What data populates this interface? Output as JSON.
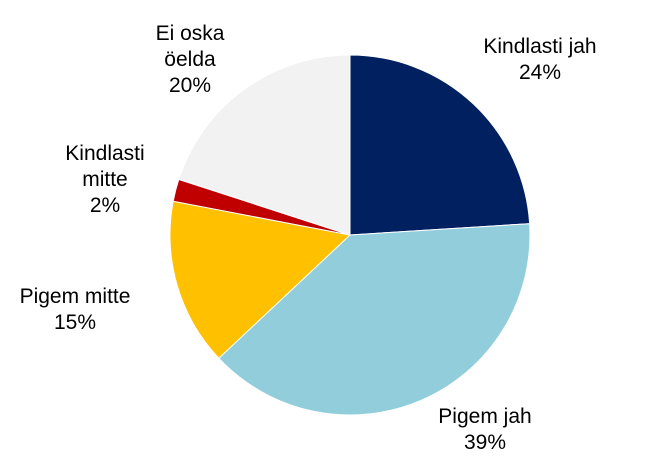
{
  "chart_data": {
    "type": "pie",
    "categories": [
      "Kindlasti jah",
      "Pigem jah",
      "Pigem mitte",
      "Kindlasti mitte",
      "Ei oska öelda"
    ],
    "values": [
      24,
      39,
      15,
      2,
      20
    ],
    "value_labels": [
      "24%",
      "39%",
      "15%",
      "2%",
      "20%"
    ],
    "colors": [
      "#002060",
      "#92cddc",
      "#ffc000",
      "#c00000",
      "#f2f2f2"
    ]
  }
}
